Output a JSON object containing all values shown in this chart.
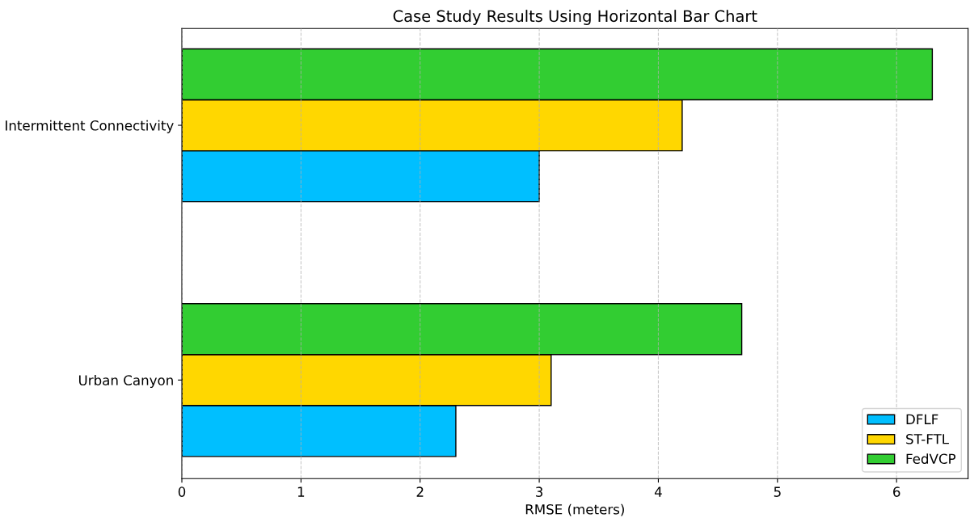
{
  "chart_data": {
    "type": "bar",
    "orientation": "horizontal",
    "title": "Case Study Results Using Horizontal Bar Chart",
    "xlabel": "RMSE (meters)",
    "categories": [
      "Intermittent Connectivity",
      "Urban Canyon"
    ],
    "series": [
      {
        "name": "DFLF",
        "color": "#00bfff",
        "values": [
          3.0,
          2.3
        ]
      },
      {
        "name": "ST-FTL",
        "color": "#ffd700",
        "values": [
          4.2,
          3.1
        ]
      },
      {
        "name": "FedVCP",
        "color": "#32cd32",
        "values": [
          6.3,
          4.7
        ]
      }
    ],
    "xlim": [
      0,
      6.6
    ],
    "xticks": [
      0,
      1,
      2,
      3,
      4,
      5,
      6
    ],
    "grid": "x",
    "line_style": "dashed",
    "legend": "bottom right"
  }
}
